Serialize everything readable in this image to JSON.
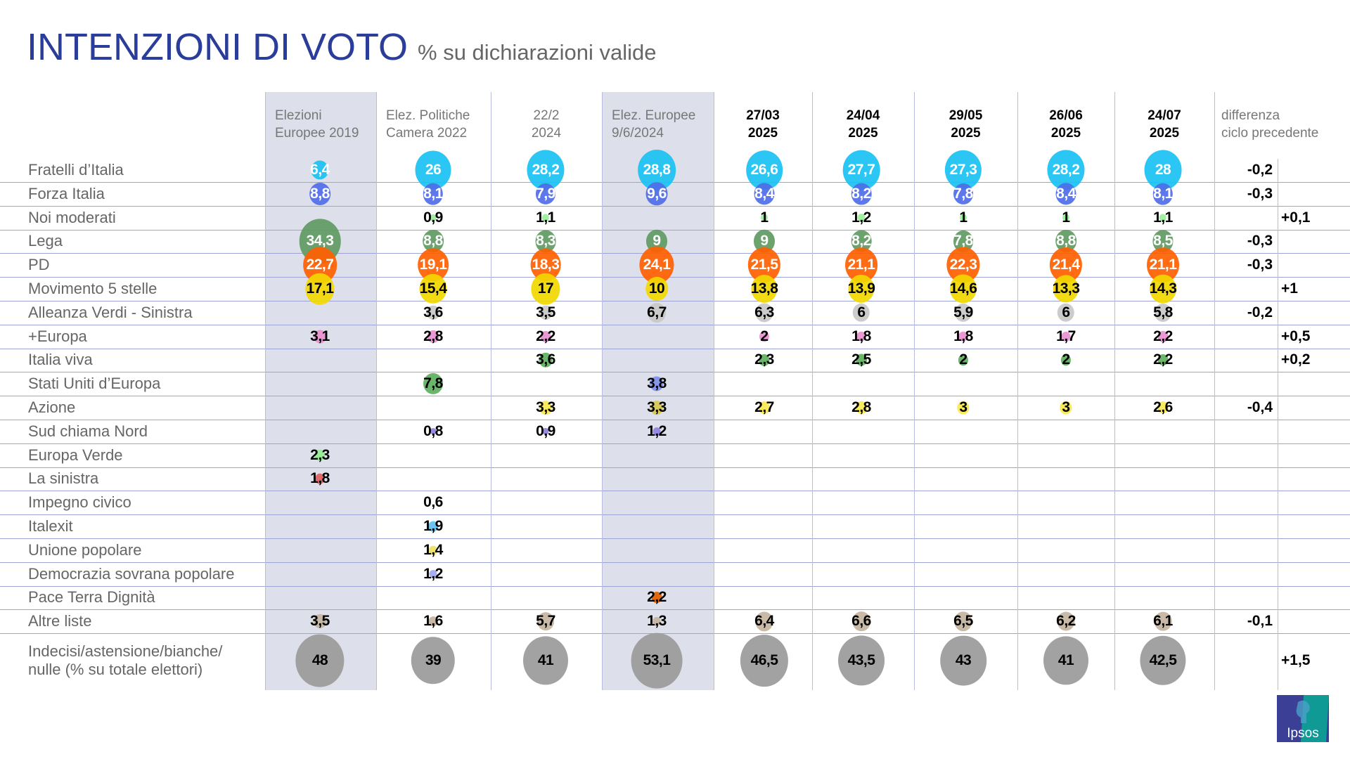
{
  "title": "INTENZIONI DI VOTO",
  "subtitle": "% su dichiarazioni valide",
  "logo_text": "Ipsos",
  "chart_data": {
    "type": "table",
    "columns": [
      {
        "label": "Elezioni\nEuropee 2019",
        "style": "election"
      },
      {
        "label": "Elez. Politiche\nCamera 2022",
        "style": "election"
      },
      {
        "label": "22/2\n2024",
        "style": "poll"
      },
      {
        "label": "Elez. Europee\n9/6/2024",
        "style": "election"
      },
      {
        "label": "27/03\n2025",
        "style": "poll-bold"
      },
      {
        "label": "24/04\n2025",
        "style": "poll-bold"
      },
      {
        "label": "29/05\n2025",
        "style": "poll-bold"
      },
      {
        "label": "26/06\n2025",
        "style": "poll-bold"
      },
      {
        "label": "24/07\n2025",
        "style": "poll-bold"
      }
    ],
    "diff_header": "differenza\nciclo precedente",
    "rows": [
      {
        "label": "Fratelli d’Italia",
        "color": "#19c1f2",
        "text": "white",
        "values": [
          "6,4",
          "26",
          "28,2",
          "28,8",
          "26,6",
          "27,7",
          "27,3",
          "28,2",
          "28"
        ],
        "diff": "-0,2"
      },
      {
        "label": "Forza Italia",
        "color": "#4f6de8",
        "text": "white",
        "values": [
          "8,8",
          "8,1",
          "7,9",
          "9,6",
          "8,4",
          "8,2",
          "7,8",
          "8,4",
          "8,1"
        ],
        "diff": "-0,3"
      },
      {
        "label": "Noi moderati",
        "color": "#98f098",
        "text": "black",
        "values": [
          null,
          "0,9",
          "1,1",
          null,
          "1",
          "1,2",
          "1",
          "1",
          "1,1"
        ],
        "diff": "+0,1"
      },
      {
        "label": "Lega",
        "color": "#5f9a62",
        "text": "white",
        "values": [
          "34,3",
          "8,8",
          "8,3",
          "9",
          "9",
          "8,2",
          "7,8",
          "8,8",
          "8,5"
        ],
        "diff": "-0,3"
      },
      {
        "label": "PD",
        "color": "#ff6000",
        "text": "white",
        "values": [
          "22,7",
          "19,1",
          "18,3",
          "24,1",
          "21,5",
          "21,1",
          "22,3",
          "21,4",
          "21,1"
        ],
        "diff": "-0,3"
      },
      {
        "label": "Movimento 5 stelle",
        "color": "#f2d800",
        "text": "black",
        "values": [
          "17,1",
          "15,4",
          "17",
          "10",
          "13,8",
          "13,9",
          "14,6",
          "13,3",
          "14,3"
        ],
        "diff": "+1"
      },
      {
        "label": "Alleanza Verdi - Sinistra",
        "color": "#c8c8c8",
        "text": "black",
        "values": [
          null,
          "3,6",
          "3,5",
          "6,7",
          "6,3",
          "6",
          "5,9",
          "6",
          "5,8"
        ],
        "diff": "-0,2"
      },
      {
        "label": "+Europa",
        "color": "#e890d0",
        "text": "black",
        "values": [
          "3,1",
          "2,8",
          "2,2",
          null,
          "2",
          "1,8",
          "1,8",
          "1,7",
          "2,2"
        ],
        "diff": "+0,5"
      },
      {
        "label": "Italia viva",
        "color": "#5fb060",
        "text": "black",
        "values": [
          null,
          null,
          "3,6",
          null,
          "2,3",
          "2,5",
          "2",
          "2",
          "2,2"
        ],
        "diff": "+0,2"
      },
      {
        "label": "Stati Uniti d’Europa",
        "color": "#7f8fe8",
        "text": "black",
        "values": [
          null,
          "7,8",
          null,
          "3,8",
          null,
          null,
          null,
          null,
          null
        ],
        "diff": null,
        "cell_colors": [
          null,
          "#5fb060",
          null,
          "#7f8fe8",
          null,
          null,
          null,
          null,
          null
        ]
      },
      {
        "label": "Azione",
        "color": "#f8e850",
        "text": "black",
        "values": [
          null,
          null,
          "3,3",
          "3,3",
          "2,7",
          "2,8",
          "3",
          "3",
          "2,6"
        ],
        "diff": "-0,4",
        "cell_colors": [
          null,
          null,
          "#f8e850",
          "#d8c850",
          null,
          null,
          null,
          null,
          null
        ]
      },
      {
        "label": "Sud chiama Nord",
        "color": "#9080e0",
        "text": "black",
        "values": [
          null,
          "0,8",
          "0,9",
          "1,2",
          null,
          null,
          null,
          null,
          null
        ],
        "diff": null
      },
      {
        "label": "Europa Verde",
        "color": "#90ee90",
        "text": "black",
        "values": [
          "2,3",
          null,
          null,
          null,
          null,
          null,
          null,
          null,
          null
        ],
        "diff": null
      },
      {
        "label": "La sinistra",
        "color": "#e06060",
        "text": "black",
        "values": [
          "1,8",
          null,
          null,
          null,
          null,
          null,
          null,
          null,
          null
        ],
        "diff": null
      },
      {
        "label": "Impegno civico",
        "color": "#ffffff",
        "text": "black",
        "values": [
          null,
          "0,6",
          null,
          null,
          null,
          null,
          null,
          null,
          null
        ],
        "diff": null
      },
      {
        "label": "Italexit",
        "color": "#60c0f0",
        "text": "black",
        "values": [
          null,
          "1,9",
          null,
          null,
          null,
          null,
          null,
          null,
          null
        ],
        "diff": null
      },
      {
        "label": "Unione popolare",
        "color": "#f0e060",
        "text": "black",
        "values": [
          null,
          "1,4",
          null,
          null,
          null,
          null,
          null,
          null,
          null
        ],
        "diff": null
      },
      {
        "label": "Democrazia sovrana popolare",
        "color": "#a0a8f0",
        "text": "black",
        "values": [
          null,
          "1,2",
          null,
          null,
          null,
          null,
          null,
          null,
          null
        ],
        "diff": null
      },
      {
        "label": "Pace Terra Dignità",
        "color": "#e06000",
        "text": "black",
        "values": [
          null,
          null,
          null,
          "2,2",
          null,
          null,
          null,
          null,
          null
        ],
        "diff": null
      },
      {
        "label": "Altre liste",
        "color": "#c4b4a0",
        "text": "black",
        "values": [
          "3,5",
          "1,6",
          "5,7",
          "1,3",
          "6,4",
          "6,6",
          "6,5",
          "6,2",
          "6,1"
        ],
        "diff": "-0,1"
      },
      {
        "label": "Indecisi/astensione/bianche/\nnulle (% su totale elettori)",
        "color": "#9a9a9a",
        "text": "black",
        "values": [
          "48",
          "39",
          "41",
          "53,1",
          "46,5",
          "43,5",
          "43",
          "41",
          "42,5"
        ],
        "diff": "+1,5"
      }
    ]
  }
}
